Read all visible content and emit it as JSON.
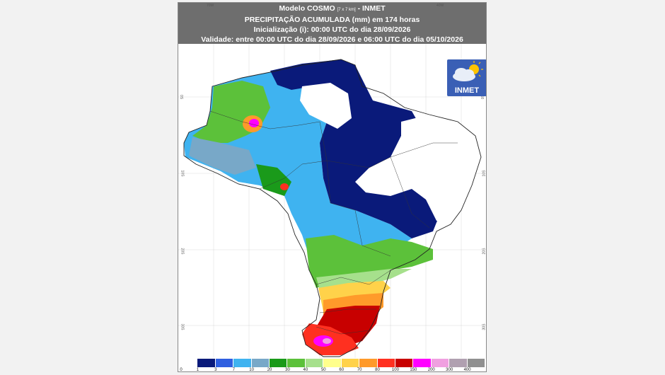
{
  "header": {
    "model": "Modelo COSMO",
    "resolution": "[7 x 7 km]",
    "source": "- INMET",
    "title": "PRECIPITAÇÃO ACUMULADA (mm) em 174 horas",
    "init": "Inicialização (i): 00:00 UTC do dia 28/09/2026",
    "validity": "Validade: entre 00:00 UTC do dia 28/09/2026 e 06:00 UTC do dia 05/10/2026"
  },
  "coords": {
    "top": [
      "70W",
      "40W"
    ],
    "left": [
      "0S",
      "10S",
      "20S",
      "30S"
    ],
    "right": [
      "0S",
      "10S",
      "20S",
      "30S"
    ]
  },
  "logo": {
    "text": "INMET",
    "icon": "cloud-sun-icon"
  },
  "legend": {
    "labels": [
      "0",
      "1",
      "3",
      "7",
      "10",
      "20",
      "30",
      "40",
      "50",
      "60",
      "70",
      "80",
      "100",
      "150",
      "200",
      "300",
      "400"
    ],
    "colors": [
      "#ffffff",
      "#0a1a7a",
      "#2f5fe0",
      "#3fb3f0",
      "#78a8c8",
      "#1a9a1a",
      "#5cc13a",
      "#a6e08c",
      "#ffff8c",
      "#ffd24a",
      "#ff9a2a",
      "#ff3020",
      "#c80000",
      "#ff00ff",
      "#f0a0e0",
      "#b0a0b0",
      "#909090"
    ]
  }
}
